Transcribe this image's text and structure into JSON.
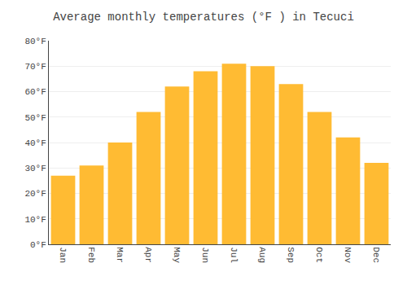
{
  "chart_data": {
    "type": "bar",
    "title": "Average monthly temperatures (°F ) in Tecuci",
    "categories": [
      "Jan",
      "Feb",
      "Mar",
      "Apr",
      "May",
      "Jun",
      "Jul",
      "Aug",
      "Sep",
      "Oct",
      "Nov",
      "Dec"
    ],
    "values": [
      27,
      31,
      40,
      52,
      62,
      68,
      71,
      70,
      63,
      52,
      42,
      32
    ],
    "color": "#FFBB33",
    "ylim": [
      0,
      80
    ],
    "yticks": [
      {
        "value": 0,
        "label": "0°F"
      },
      {
        "value": 10,
        "label": "10°F"
      },
      {
        "value": 20,
        "label": "20°F"
      },
      {
        "value": 30,
        "label": "30°F"
      },
      {
        "value": 40,
        "label": "40°F"
      },
      {
        "value": 50,
        "label": "50°F"
      },
      {
        "value": 60,
        "label": "60°F"
      },
      {
        "value": 70,
        "label": "70°F"
      },
      {
        "value": 80,
        "label": "80°F"
      }
    ],
    "grid": true
  }
}
